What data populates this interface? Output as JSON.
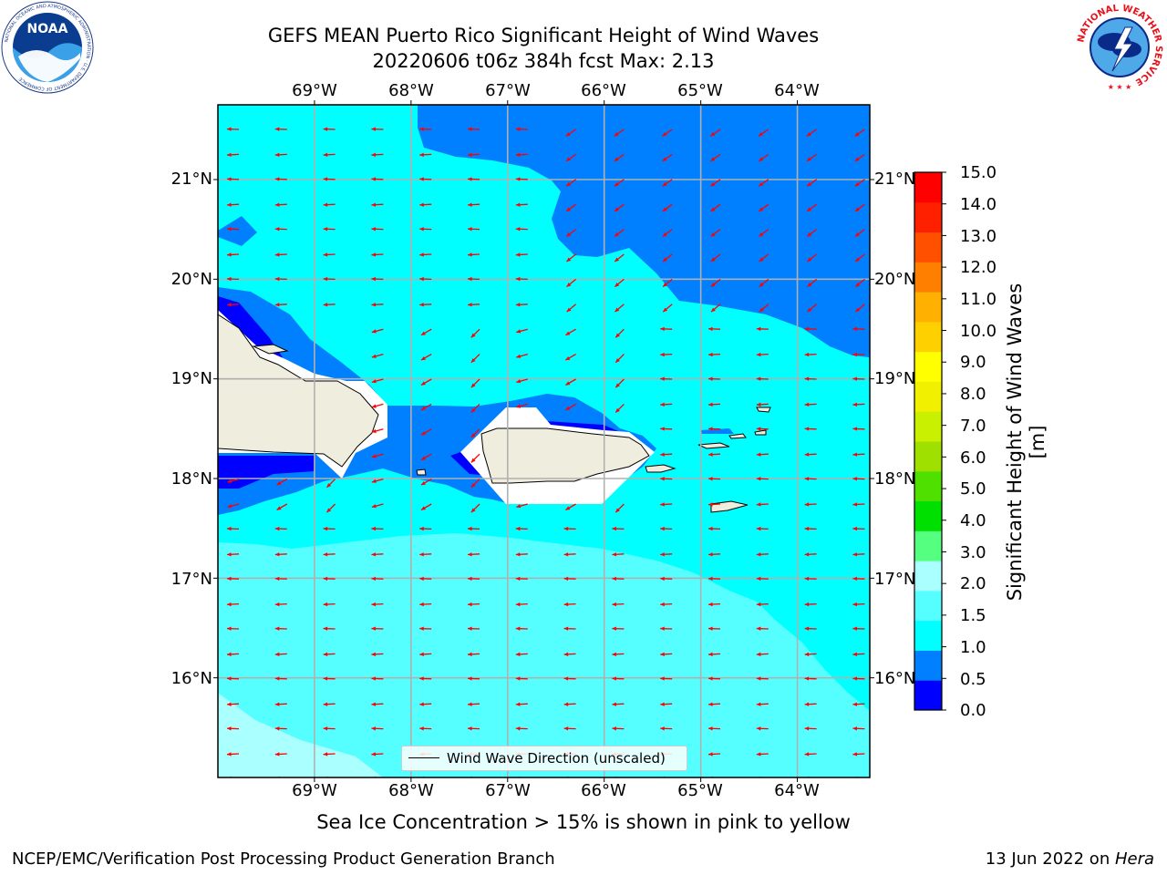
{
  "title": {
    "line1": "GEFS MEAN Puerto Rico Significant Height of Wind Waves",
    "line2": "20220606 t06z 384h fcst   Max: 2.13"
  },
  "map": {
    "lon_labels": [
      "69°W",
      "68°W",
      "67°W",
      "66°W",
      "65°W",
      "64°W"
    ],
    "lat_labels": [
      "21°N",
      "20°N",
      "19°N",
      "18°N",
      "17°N",
      "16°N"
    ],
    "lon_values": [
      -69,
      -68,
      -67,
      -66,
      -65,
      -64
    ],
    "lat_values": [
      21,
      20,
      19,
      18,
      17,
      16
    ],
    "lon_range": [
      -70.0,
      -63.25
    ],
    "lat_range": [
      15.0,
      21.75
    ],
    "arrow_color": "#ff0000",
    "land_color": "#efedde"
  },
  "legend": {
    "label": "Wind Wave Direction (unscaled)"
  },
  "colorbar": {
    "title": "Significant Height of Wind Waves [m]",
    "ticks": [
      "15.0",
      "14.0",
      "13.0",
      "12.0",
      "11.0",
      "10.0",
      "9.0",
      "8.0",
      "7.0",
      "6.0",
      "5.0",
      "4.0",
      "3.0",
      "2.0",
      "1.5",
      "1.0",
      "0.5",
      "0.0"
    ],
    "colors": [
      "#0000ff",
      "#0080ff",
      "#00ffff",
      "#55ffff",
      "#aaffff",
      "#55ff80",
      "#00e000",
      "#50e000",
      "#a0e000",
      "#c8f000",
      "#f0f000",
      "#ffff00",
      "#ffd000",
      "#ffb000",
      "#ff8000",
      "#ff5000",
      "#ff2000",
      "#ff0000"
    ]
  },
  "sea_ice_note": "Sea Ice Concentration > 15% is shown in pink to yellow",
  "footer": {
    "left": "NCEP/EMC/Verification Post Processing Product Generation Branch",
    "date": "13 Jun 2022 on ",
    "host": "Hera"
  },
  "logos": {
    "left": "NOAA",
    "left_ring": "NATIONAL OCEANIC AND ATMOSPHERIC ADMINISTRATION · U.S. DEPARTMENT OF COMMERCE",
    "right_ring": "NATIONAL WEATHER SERVICE"
  }
}
